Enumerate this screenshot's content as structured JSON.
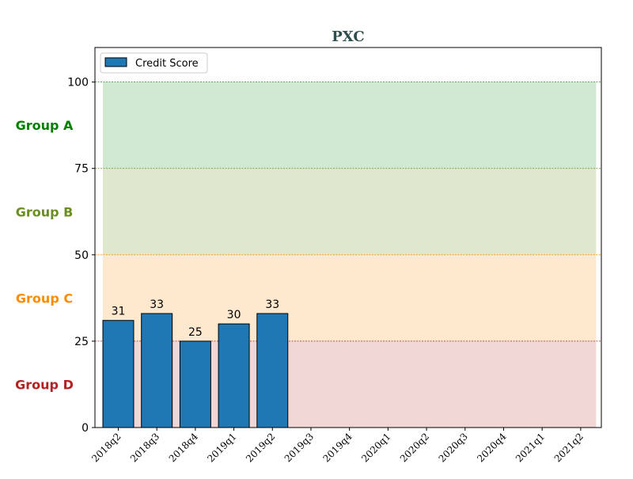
{
  "chart_data": {
    "type": "bar",
    "title": "PXC",
    "xlabel": "",
    "ylabel": "",
    "categories": [
      "2018q2",
      "2018q3",
      "2018q4",
      "2019q1",
      "2019q2",
      "2019q3",
      "2019q4",
      "2020q1",
      "2020q2",
      "2020q3",
      "2020q4",
      "2021q1",
      "2021q2"
    ],
    "series": [
      {
        "name": "Credit Score",
        "values": [
          31,
          33,
          25,
          30,
          33,
          null,
          null,
          null,
          null,
          null,
          null,
          null,
          null
        ],
        "color": "#1f77b4"
      }
    ],
    "data_labels": [
      "31",
      "33",
      "25",
      "30",
      "33"
    ],
    "ylim": [
      0,
      110
    ],
    "yticks": [
      0,
      25,
      50,
      75,
      100
    ],
    "legend_position": "top-left",
    "bands": [
      {
        "label": "Group A",
        "from": 75,
        "to": 100,
        "fill": "#a8d5a8",
        "line_color": "#228B22",
        "label_color": "#008000"
      },
      {
        "label": "Group B",
        "from": 50,
        "to": 75,
        "fill": "#c5d5a5",
        "line_color": "#6B8E23",
        "label_color": "#6B8E23"
      },
      {
        "label": "Group C",
        "from": 25,
        "to": 50,
        "fill": "#fdd5a5",
        "line_color": "#FF8C00",
        "label_color": "#FF8C00"
      },
      {
        "label": "Group D",
        "from": 0,
        "to": 25,
        "fill": "#e5b5b5",
        "line_color": "#B22222",
        "label_color": "#B22222"
      }
    ]
  }
}
